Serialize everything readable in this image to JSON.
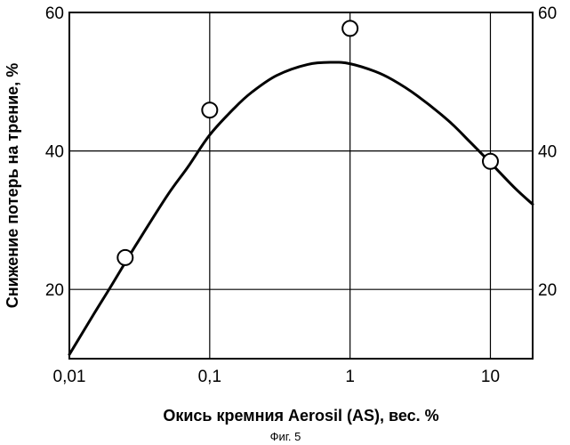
{
  "chart_data": {
    "type": "scatter",
    "caption": "Фиг. 5",
    "xlabel": "Окись кремния Aerosil (AS), вес. %",
    "ylabel": "Снижение потерь на трение, %",
    "xscale": "log",
    "xlim": [
      0.01,
      20
    ],
    "ylim": [
      10,
      60
    ],
    "grid": true,
    "x_ticks": [
      {
        "value": 0.01,
        "label": "0,01"
      },
      {
        "value": 0.1,
        "label": "0,1"
      },
      {
        "value": 1,
        "label": "1"
      },
      {
        "value": 10,
        "label": "10"
      }
    ],
    "y_ticks": [
      {
        "value": 20,
        "label": "20"
      },
      {
        "value": 40,
        "label": "40"
      },
      {
        "value": 60,
        "label": "60"
      }
    ],
    "series": [
      {
        "kind": "points",
        "marker": "open-circle",
        "x": [
          0.025,
          0.1,
          1,
          10
        ],
        "y": [
          24.6,
          45.9,
          57.7,
          38.5
        ]
      },
      {
        "kind": "fitted-curve",
        "x": [
          0.01,
          0.015,
          0.02,
          0.03,
          0.05,
          0.07,
          0.1,
          0.15,
          0.2,
          0.3,
          0.5,
          0.75,
          1,
          1.5,
          2,
          3,
          5,
          7,
          10,
          15,
          20
        ],
        "y": [
          10.6,
          16.5,
          20.6,
          26.5,
          33.6,
          37.7,
          42.3,
          46.2,
          48.5,
          50.9,
          52.5,
          52.8,
          52.6,
          51.5,
          50.3,
          48.0,
          44.4,
          41.5,
          38.3,
          34.6,
          32.3
        ]
      }
    ]
  }
}
